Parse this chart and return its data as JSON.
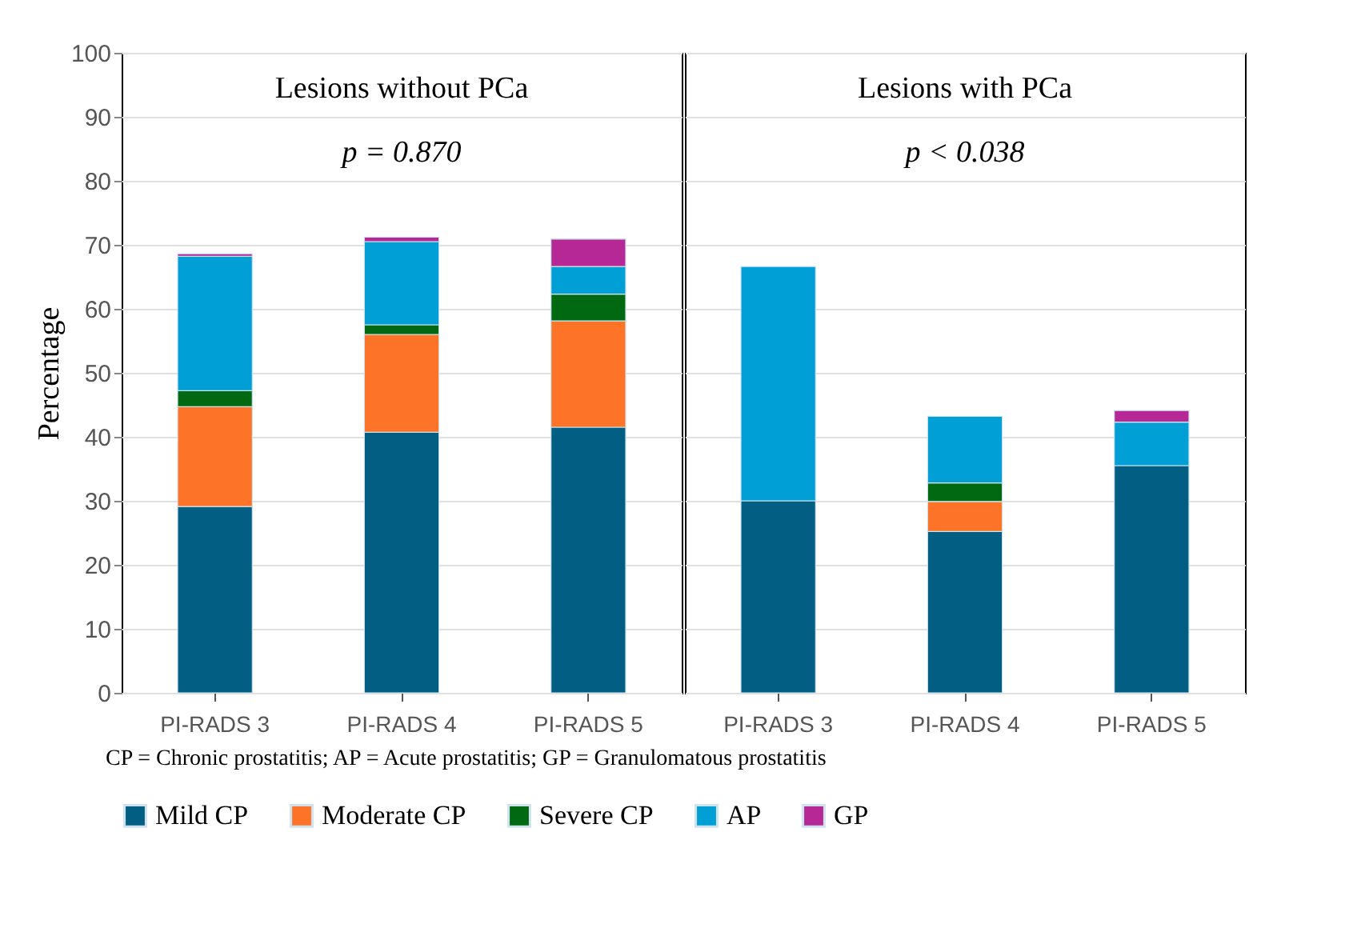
{
  "chart_data": [
    {
      "type": "bar",
      "stacked": true,
      "title": "Lesions without PCa",
      "subtitle": "p = 0.870",
      "ylabel": "Percentage",
      "categories": [
        "PI-RADS 3",
        "PI-RADS 4",
        "PI-RADS 5"
      ],
      "series": [
        {
          "name": "Mild CP",
          "color": "#025f83",
          "values": [
            29.1,
            40.7,
            41.5
          ]
        },
        {
          "name": "Moderate CP",
          "color": "#fd7328",
          "values": [
            15.6,
            15.3,
            16.6
          ]
        },
        {
          "name": "Severe CP",
          "color": "#026913",
          "values": [
            2.5,
            1.5,
            4.2
          ]
        },
        {
          "name": "AP",
          "color": "#009fd6",
          "values": [
            21.0,
            13.0,
            4.3
          ]
        },
        {
          "name": "GP",
          "color": "#b52896",
          "values": [
            0.4,
            0.7,
            4.3
          ]
        }
      ],
      "ylim": [
        0,
        100
      ],
      "yticks": [
        0,
        10,
        20,
        30,
        40,
        50,
        60,
        70,
        80,
        90,
        100
      ],
      "grid": "y",
      "legend": "bottom",
      "annotations": [
        "CP = Chronic prostatitis; AP = Acute prostatitis; GP = Granulomatous prostatitis"
      ]
    },
    {
      "type": "bar",
      "stacked": true,
      "title": "Lesions with PCa",
      "subtitle": "p < 0.038",
      "categories": [
        "PI-RADS 3",
        "PI-RADS 4",
        "PI-RADS 5"
      ],
      "series": [
        {
          "name": "Mild CP",
          "color": "#025f83",
          "values": [
            30.0,
            25.2,
            35.5
          ]
        },
        {
          "name": "Moderate CP",
          "color": "#fd7328",
          "values": [
            null,
            4.7,
            null
          ]
        },
        {
          "name": "Severe CP",
          "color": "#026913",
          "values": [
            null,
            2.9,
            null
          ]
        },
        {
          "name": "AP",
          "color": "#009fd6",
          "values": [
            36.6,
            10.4,
            6.8
          ]
        },
        {
          "name": "GP",
          "color": "#b52896",
          "values": [
            null,
            null,
            1.8
          ]
        }
      ],
      "ylim": [
        0,
        100
      ],
      "yticks": [
        0,
        10,
        20,
        30,
        40,
        50,
        60,
        70,
        80,
        90,
        100
      ],
      "grid": "y",
      "legend": "bottom",
      "tick_labels": "x"
    }
  ]
}
